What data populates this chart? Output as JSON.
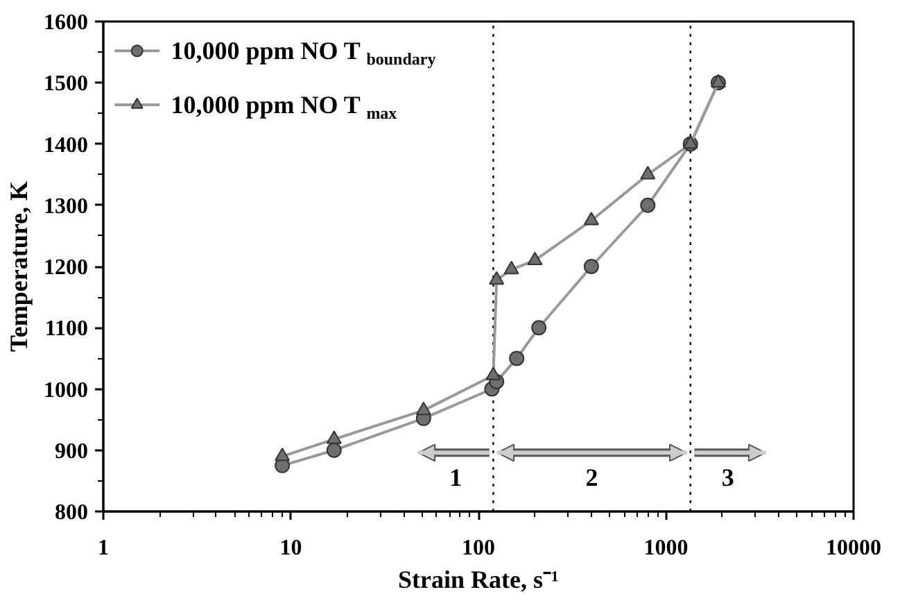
{
  "chart_data": {
    "type": "line",
    "xlabel": "Strain Rate, s⁻¹",
    "ylabel": "Temperature, K",
    "log": "x",
    "xlim": [
      1,
      10000
    ],
    "xticks": [
      1,
      10,
      100,
      1000,
      10000
    ],
    "ylim": [
      800,
      1600
    ],
    "yticks": [
      800,
      900,
      1000,
      1100,
      1200,
      1300,
      1400,
      1500,
      1600
    ],
    "grid": false,
    "legend": "top left",
    "series": [
      {
        "name": "10,000 ppm NO T$_{boundary}$",
        "color": "#6e6e6e",
        "marker": "circle",
        "x": [
          9,
          17,
          51,
          118,
          125,
          160,
          210,
          400,
          800,
          1350,
          1900
        ],
        "values": [
          875,
          900,
          952,
          1000,
          1012,
          1050,
          1100,
          1200,
          1300,
          1400,
          1500
        ]
      },
      {
        "name": "10,000 ppm NO T$_{max}$",
        "color": "#6e6e6e",
        "marker": "triangle",
        "x": [
          9,
          17,
          51,
          120,
          125,
          150,
          200,
          400,
          800,
          1350,
          1900
        ],
        "values": [
          890,
          918,
          965,
          1022,
          1178,
          1195,
          1210,
          1275,
          1350,
          1400,
          1500
        ]
      }
    ],
    "ref_lines": [
      {
        "axis": "x",
        "value": 120,
        "line_style": "dotted",
        "color": "#000000"
      },
      {
        "axis": "x",
        "value": 1350,
        "line_style": "dotted",
        "color": "#000000"
      }
    ],
    "annotations": [
      "1",
      "2",
      "3"
    ]
  }
}
